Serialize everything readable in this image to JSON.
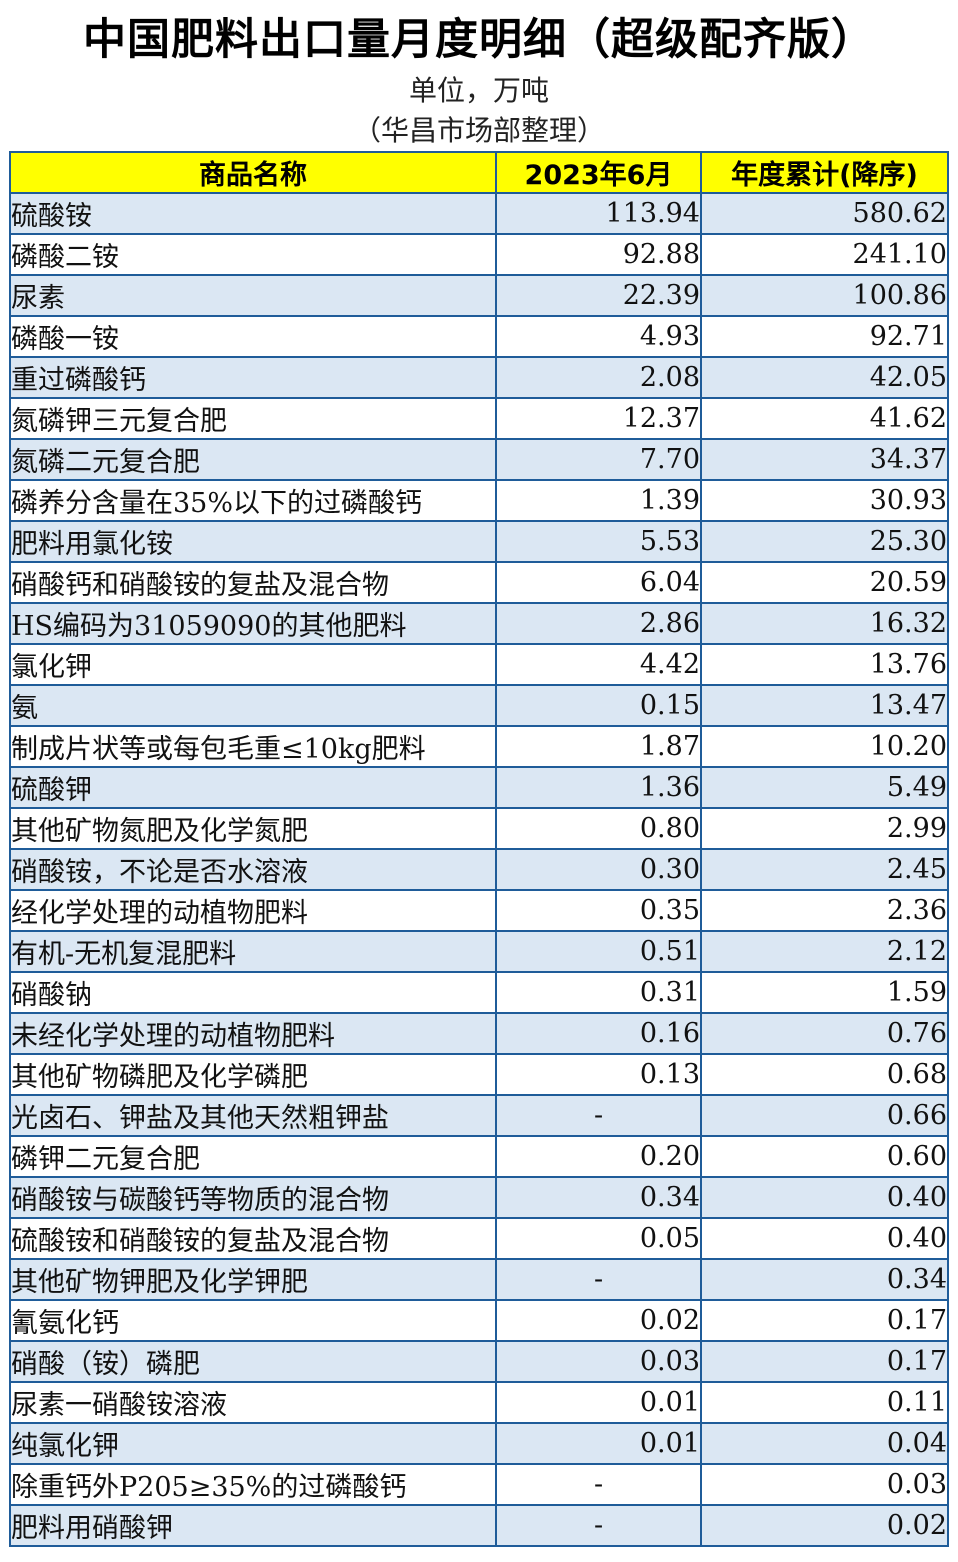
{
  "title": "中国肥料出口量月度明细（超级配齐版）",
  "unit": "单位，万吨",
  "source": "（华昌市场部整理）",
  "headers": [
    "商品名称",
    "2023年6月",
    "年度累计(降序)"
  ],
  "rows": [
    {
      "name": "硫酸铵",
      "month": "113.94",
      "ytd": "580.62"
    },
    {
      "name": "磷酸二铵",
      "month": "92.88",
      "ytd": "241.10"
    },
    {
      "name": "尿素",
      "month": "22.39",
      "ytd": "100.86"
    },
    {
      "name": "磷酸一铵",
      "month": "4.93",
      "ytd": "92.71"
    },
    {
      "name": "重过磷酸钙",
      "month": "2.08",
      "ytd": "42.05"
    },
    {
      "name": "氮磷钾三元复合肥",
      "month": "12.37",
      "ytd": "41.62"
    },
    {
      "name": "氮磷二元复合肥",
      "month": "7.70",
      "ytd": "34.37"
    },
    {
      "name": "磷养分含量在35%以下的过磷酸钙",
      "month": "1.39",
      "ytd": "30.93"
    },
    {
      "name": "肥料用氯化铵",
      "month": "5.53",
      "ytd": "25.30"
    },
    {
      "name": "硝酸钙和硝酸铵的复盐及混合物",
      "month": "6.04",
      "ytd": "20.59"
    },
    {
      "name": "HS编码为31059090的其他肥料",
      "month": "2.86",
      "ytd": "16.32"
    },
    {
      "name": "氯化钾",
      "month": "4.42",
      "ytd": "13.76"
    },
    {
      "name": "氨",
      "month": "0.15",
      "ytd": "13.47"
    },
    {
      "name": "制成片状等或每包毛重≤10kg肥料",
      "month": "1.87",
      "ytd": "10.20"
    },
    {
      "name": "硫酸钾",
      "month": "1.36",
      "ytd": "5.49"
    },
    {
      "name": "其他矿物氮肥及化学氮肥",
      "month": "0.80",
      "ytd": "2.99"
    },
    {
      "name": "硝酸铵，不论是否水溶液",
      "month": "0.30",
      "ytd": "2.45"
    },
    {
      "name": "经化学处理的动植物肥料",
      "month": "0.35",
      "ytd": "2.36"
    },
    {
      "name": "有机-无机复混肥料",
      "month": "0.51",
      "ytd": "2.12"
    },
    {
      "name": "硝酸钠",
      "month": "0.31",
      "ytd": "1.59"
    },
    {
      "name": "未经化学处理的动植物肥料",
      "month": "0.16",
      "ytd": "0.76"
    },
    {
      "name": "其他矿物磷肥及化学磷肥",
      "month": "0.13",
      "ytd": "0.68"
    },
    {
      "name": "光卤石、钾盐及其他天然粗钾盐",
      "month": "-",
      "ytd": "0.66"
    },
    {
      "name": "磷钾二元复合肥",
      "month": "0.20",
      "ytd": "0.60"
    },
    {
      "name": "硝酸铵与碳酸钙等物质的混合物",
      "month": "0.34",
      "ytd": "0.40"
    },
    {
      "name": "硫酸铵和硝酸铵的复盐及混合物",
      "month": "0.05",
      "ytd": "0.40"
    },
    {
      "name": "其他矿物钾肥及化学钾肥",
      "month": "-",
      "ytd": "0.34"
    },
    {
      "name": "氰氨化钙",
      "month": "0.02",
      "ytd": "0.17"
    },
    {
      "name": "硝酸（铵）磷肥",
      "month": "0.03",
      "ytd": "0.17"
    },
    {
      "name": "尿素一硝酸铵溶液",
      "month": "0.01",
      "ytd": "0.11"
    },
    {
      "name": "纯氯化钾",
      "month": "0.01",
      "ytd": "0.04"
    },
    {
      "name": "除重钙外P205≥35%的过磷酸钙",
      "month": "-",
      "ytd": "0.03"
    },
    {
      "name": "肥料用硝酸钾",
      "month": "-",
      "ytd": "0.02"
    }
  ]
}
